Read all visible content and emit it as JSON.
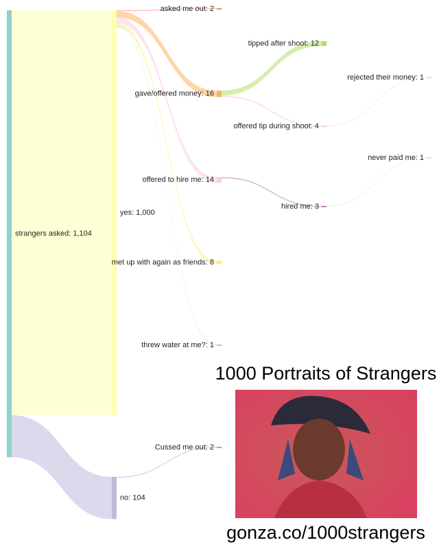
{
  "chart_data": {
    "type": "sankey",
    "title": "1000 Portraits of Strangers",
    "caption": "gonza.co/1000strangers",
    "nodes": [
      {
        "label": "strangers asked: 1,104",
        "value": 1104,
        "color": "#8dd3c7"
      },
      {
        "label": "yes: 1,000",
        "value": 1000,
        "color": "#ffffb3"
      },
      {
        "label": "no: 104",
        "value": 104,
        "color": "#bebada"
      },
      {
        "label": "asked me out: 2",
        "value": 2,
        "color": "#fb8072"
      },
      {
        "label": "gave/offered money: 16",
        "value": 16,
        "color": "#fdb462"
      },
      {
        "label": "offered to hire me: 14",
        "value": 14,
        "color": "#fccde5"
      },
      {
        "label": "met up with again as friends: 8",
        "value": 8,
        "color": "#ffed6f"
      },
      {
        "label": "threw water at me?: 1",
        "value": 1,
        "color": "#8dd3c7"
      },
      {
        "label": "Cussed me out: 2",
        "value": 2,
        "color": "#80b1d3"
      },
      {
        "label": "tipped after shoot: 12",
        "value": 12,
        "color": "#b3de69"
      },
      {
        "label": "offered tip during shoot: 4",
        "value": 4,
        "color": "#fccde5"
      },
      {
        "label": "hired me: 3",
        "value": 3,
        "color": "#bc80bd"
      },
      {
        "label": "rejected their money: 1",
        "value": 1,
        "color": "#ccebc5"
      },
      {
        "label": "never paid me: 1",
        "value": 1,
        "color": "#ccebc5"
      }
    ],
    "links": [
      {
        "source": 0,
        "target": 1
      },
      {
        "source": 0,
        "target": 2
      },
      {
        "source": 1,
        "target": 3
      },
      {
        "source": 1,
        "target": 4
      },
      {
        "source": 1,
        "target": 5
      },
      {
        "source": 1,
        "target": 6
      },
      {
        "source": 1,
        "target": 7
      },
      {
        "source": 2,
        "target": 8
      },
      {
        "source": 4,
        "target": 9
      },
      {
        "source": 4,
        "target": 10
      },
      {
        "source": 10,
        "target": 12
      },
      {
        "source": 5,
        "target": 11
      },
      {
        "source": 11,
        "target": 13
      }
    ]
  }
}
